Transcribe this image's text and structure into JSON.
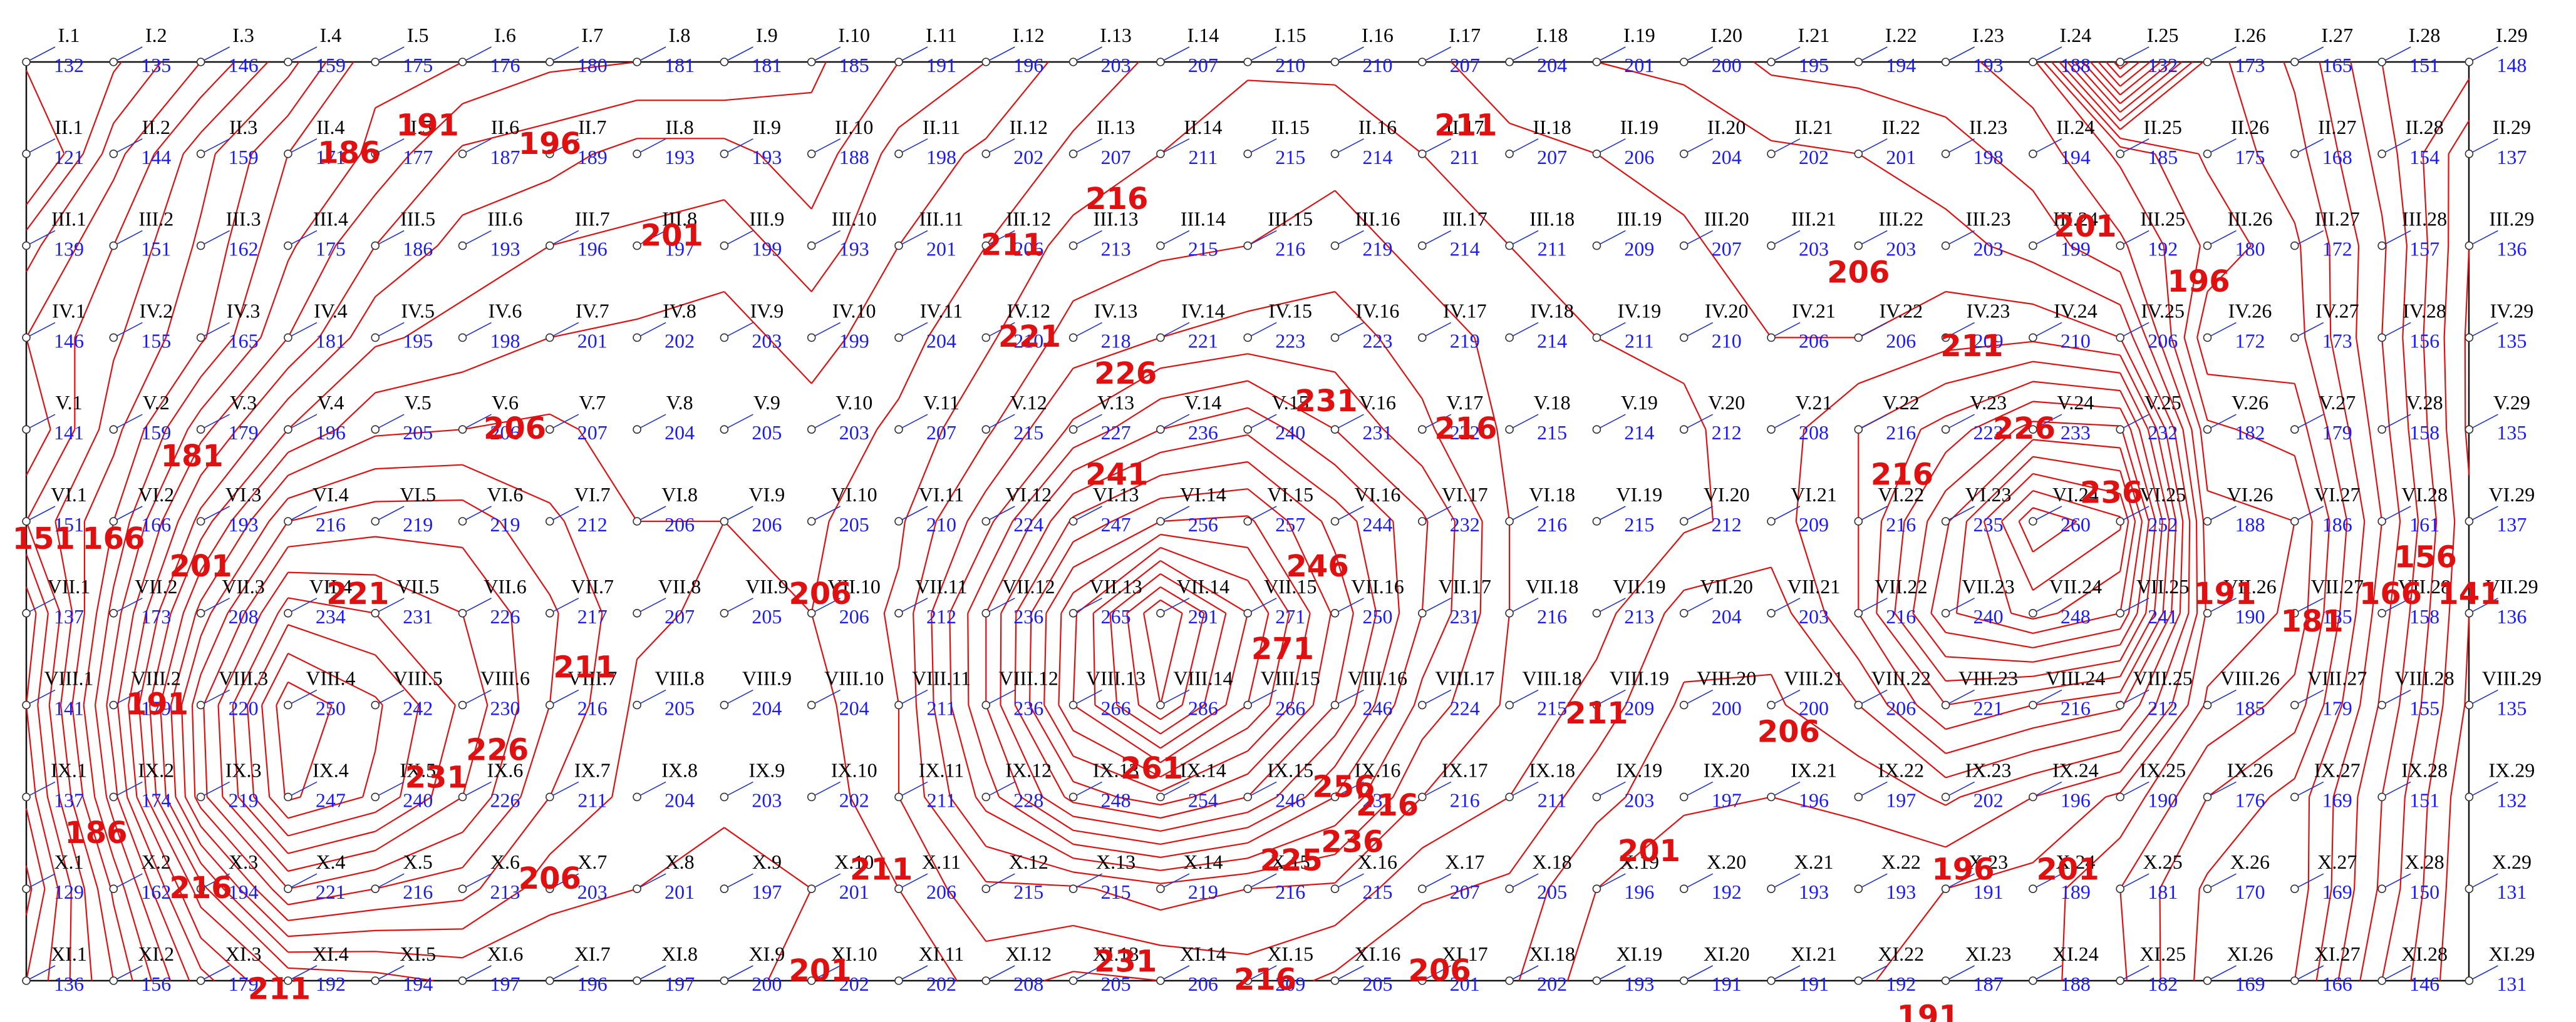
{
  "grid": {
    "rows": [
      "I",
      "II",
      "III",
      "IV",
      "V",
      "VI",
      "VII",
      "VIII",
      "IX",
      "X",
      "XI"
    ],
    "cols": 29,
    "values": [
      [
        132,
        135,
        146,
        159,
        175,
        176,
        180,
        181,
        181,
        185,
        191,
        196,
        203,
        207,
        210,
        210,
        207,
        204,
        201,
        200,
        195,
        194,
        193,
        188,
        132,
        173,
        165,
        151,
        148
      ],
      [
        121,
        144,
        159,
        171,
        177,
        187,
        189,
        193,
        193,
        188,
        198,
        202,
        207,
        211,
        215,
        214,
        211,
        207,
        206,
        204,
        202,
        201,
        198,
        194,
        185,
        175,
        168,
        154,
        137
      ],
      [
        139,
        151,
        162,
        175,
        186,
        193,
        196,
        197,
        199,
        193,
        201,
        206,
        213,
        215,
        216,
        219,
        214,
        211,
        209,
        207,
        203,
        203,
        203,
        199,
        192,
        180,
        172,
        157,
        136
      ],
      [
        146,
        155,
        165,
        181,
        195,
        198,
        201,
        202,
        203,
        199,
        204,
        210,
        218,
        221,
        223,
        223,
        219,
        214,
        211,
        210,
        206,
        206,
        209,
        210,
        206,
        172,
        173,
        156,
        135
      ],
      [
        141,
        159,
        179,
        196,
        205,
        206,
        207,
        204,
        205,
        203,
        207,
        215,
        227,
        236,
        240,
        231,
        222,
        215,
        214,
        212,
        208,
        216,
        223,
        233,
        232,
        182,
        179,
        158,
        135
      ],
      [
        151,
        166,
        193,
        216,
        219,
        219,
        212,
        206,
        206,
        205,
        210,
        224,
        247,
        256,
        257,
        244,
        232,
        216,
        215,
        212,
        209,
        216,
        235,
        260,
        252,
        188,
        186,
        161,
        137
      ],
      [
        137,
        173,
        208,
        234,
        231,
        226,
        217,
        207,
        205,
        206,
        212,
        236,
        265,
        291,
        271,
        250,
        231,
        216,
        213,
        204,
        203,
        216,
        240,
        248,
        241,
        190,
        185,
        158,
        136
      ],
      [
        141,
        179,
        220,
        250,
        242,
        230,
        216,
        205,
        204,
        204,
        211,
        236,
        266,
        286,
        266,
        246,
        224,
        215,
        209,
        200,
        200,
        206,
        221,
        216,
        212,
        185,
        179,
        155,
        135
      ],
      [
        137,
        174,
        219,
        247,
        240,
        226,
        211,
        204,
        203,
        202,
        211,
        228,
        248,
        254,
        246,
        231,
        216,
        211,
        203,
        197,
        196,
        197,
        202,
        196,
        190,
        176,
        169,
        151,
        132
      ],
      [
        129,
        162,
        194,
        221,
        216,
        213,
        203,
        201,
        197,
        201,
        206,
        215,
        215,
        219,
        216,
        215,
        207,
        205,
        196,
        192,
        193,
        193,
        191,
        189,
        181,
        170,
        169,
        150,
        131
      ],
      [
        136,
        156,
        179,
        192,
        194,
        197,
        196,
        197,
        200,
        202,
        202,
        208,
        205,
        206,
        209,
        205,
        201,
        202,
        193,
        191,
        191,
        192,
        187,
        188,
        182,
        169,
        166,
        146,
        131
      ]
    ]
  },
  "contour_labels": [
    {
      "text": "181",
      "x": 4.7,
      "y": -0.9
    },
    {
      "text": "191",
      "x": 4.6,
      "y": 0.8
    },
    {
      "text": "196",
      "x": 6.0,
      "y": 1.0
    },
    {
      "text": "186",
      "x": 3.7,
      "y": 1.1
    },
    {
      "text": "201",
      "x": 7.4,
      "y": 2.0
    },
    {
      "text": "211",
      "x": 11.3,
      "y": 2.1
    },
    {
      "text": "216",
      "x": 12.5,
      "y": 1.6
    },
    {
      "text": "211",
      "x": 16.5,
      "y": 0.8
    },
    {
      "text": "206",
      "x": 21.0,
      "y": 2.4
    },
    {
      "text": "201",
      "x": 23.6,
      "y": 1.9
    },
    {
      "text": "196",
      "x": 24.9,
      "y": 2.5
    },
    {
      "text": "211",
      "x": 22.3,
      "y": 3.2
    },
    {
      "text": "226",
      "x": 22.9,
      "y": 4.1
    },
    {
      "text": "221",
      "x": 11.5,
      "y": 3.1
    },
    {
      "text": "226",
      "x": 12.6,
      "y": 3.5
    },
    {
      "text": "241",
      "x": 12.5,
      "y": 4.6
    },
    {
      "text": "231",
      "x": 14.9,
      "y": 3.8
    },
    {
      "text": "246",
      "x": 14.8,
      "y": 5.6
    },
    {
      "text": "206",
      "x": 5.6,
      "y": 4.1
    },
    {
      "text": "221",
      "x": 3.8,
      "y": 5.9
    },
    {
      "text": "201",
      "x": 2.0,
      "y": 5.6
    },
    {
      "text": "181",
      "x": 1.9,
      "y": 4.4
    },
    {
      "text": "166",
      "x": 1.0,
      "y": 5.3
    },
    {
      "text": "151",
      "x": 0.2,
      "y": 5.3
    },
    {
      "text": "191",
      "x": 1.5,
      "y": 7.1
    },
    {
      "text": "211",
      "x": 6.4,
      "y": 6.7
    },
    {
      "text": "231",
      "x": 4.7,
      "y": 7.9
    },
    {
      "text": "226",
      "x": 5.4,
      "y": 7.6
    },
    {
      "text": "206",
      "x": 9.1,
      "y": 5.9
    },
    {
      "text": "216",
      "x": 16.5,
      "y": 4.1
    },
    {
      "text": "271",
      "x": 14.4,
      "y": 6.5
    },
    {
      "text": "261",
      "x": 12.9,
      "y": 7.8
    },
    {
      "text": "256",
      "x": 15.1,
      "y": 8.0
    },
    {
      "text": "236",
      "x": 15.2,
      "y": 8.6
    },
    {
      "text": "225",
      "x": 14.5,
      "y": 8.8
    },
    {
      "text": "216",
      "x": 15.6,
      "y": 8.2
    },
    {
      "text": "211",
      "x": 9.8,
      "y": 8.9
    },
    {
      "text": "206",
      "x": 6.0,
      "y": 9.0
    },
    {
      "text": "201",
      "x": 9.1,
      "y": 10.0
    },
    {
      "text": "186",
      "x": 0.8,
      "y": 8.5
    },
    {
      "text": "216",
      "x": 2.0,
      "y": 9.1
    },
    {
      "text": "211",
      "x": 2.9,
      "y": 10.2
    },
    {
      "text": "196",
      "x": 3.7,
      "y": 10.9
    },
    {
      "text": "231",
      "x": 12.6,
      "y": 9.9
    },
    {
      "text": "216",
      "x": 14.2,
      "y": 10.1
    },
    {
      "text": "206",
      "x": 16.2,
      "y": 10.0
    },
    {
      "text": "196",
      "x": 17.4,
      "y": 10.8
    },
    {
      "text": "201",
      "x": 18.6,
      "y": 8.7
    },
    {
      "text": "211",
      "x": 18.0,
      "y": 7.2
    },
    {
      "text": "206",
      "x": 20.2,
      "y": 7.4
    },
    {
      "text": "196",
      "x": 22.2,
      "y": 8.9
    },
    {
      "text": "201",
      "x": 23.4,
      "y": 8.9
    },
    {
      "text": "191",
      "x": 21.8,
      "y": 10.5
    },
    {
      "text": "216",
      "x": 21.5,
      "y": 4.6
    },
    {
      "text": "236",
      "x": 23.9,
      "y": 4.8
    },
    {
      "text": "191",
      "x": 25.2,
      "y": 5.9
    },
    {
      "text": "181",
      "x": 26.2,
      "y": 6.2
    },
    {
      "text": "166",
      "x": 27.1,
      "y": 5.9
    },
    {
      "text": "156",
      "x": 27.5,
      "y": 5.5
    },
    {
      "text": "141",
      "x": 28.0,
      "y": 5.9
    }
  ],
  "colors": {
    "label": "#000000",
    "value": "#1a1aff",
    "contour": "#e01010",
    "frame": "#111111"
  }
}
